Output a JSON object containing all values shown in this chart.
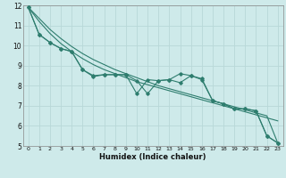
{
  "x": [
    0,
    1,
    2,
    3,
    4,
    5,
    6,
    7,
    8,
    9,
    10,
    11,
    12,
    13,
    14,
    15,
    16,
    17,
    18,
    19,
    20,
    21,
    22,
    23
  ],
  "y_data1": [
    11.9,
    10.55,
    10.15,
    9.85,
    9.7,
    8.8,
    8.45,
    8.55,
    8.55,
    8.55,
    7.6,
    8.3,
    8.25,
    8.3,
    8.6,
    8.5,
    8.3,
    7.25,
    7.1,
    6.85,
    6.85,
    6.75,
    5.5,
    5.15
  ],
  "y_data2": [
    11.9,
    10.55,
    10.15,
    9.85,
    9.7,
    8.8,
    8.5,
    8.55,
    8.55,
    8.55,
    8.25,
    7.6,
    8.25,
    8.3,
    8.15,
    8.5,
    8.35,
    7.25,
    7.1,
    6.85,
    6.85,
    6.75,
    5.5,
    5.15
  ],
  "y_trend1": [
    11.9,
    11.35,
    10.8,
    10.35,
    9.95,
    9.6,
    9.3,
    9.05,
    8.8,
    8.6,
    8.4,
    8.2,
    8.0,
    7.85,
    7.7,
    7.55,
    7.4,
    7.25,
    7.1,
    6.95,
    6.8,
    6.65,
    6.5,
    5.15
  ],
  "y_trend2": [
    11.9,
    11.2,
    10.6,
    10.1,
    9.7,
    9.35,
    9.05,
    8.8,
    8.6,
    8.4,
    8.2,
    8.05,
    7.9,
    7.75,
    7.6,
    7.45,
    7.3,
    7.15,
    7.0,
    6.85,
    6.7,
    6.55,
    6.4,
    6.25
  ],
  "color": "#2e7d6e",
  "bg_color": "#ceeaea",
  "grid_color": "#b8d8d8",
  "xlabel": "Humidex (Indice chaleur)",
  "ylim": [
    5,
    12
  ],
  "xlim": [
    -0.5,
    23.5
  ],
  "yticks": [
    5,
    6,
    7,
    8,
    9,
    10,
    11,
    12
  ],
  "xticks": [
    0,
    1,
    2,
    3,
    4,
    5,
    6,
    7,
    8,
    9,
    10,
    11,
    12,
    13,
    14,
    15,
    16,
    17,
    18,
    19,
    20,
    21,
    22,
    23
  ]
}
